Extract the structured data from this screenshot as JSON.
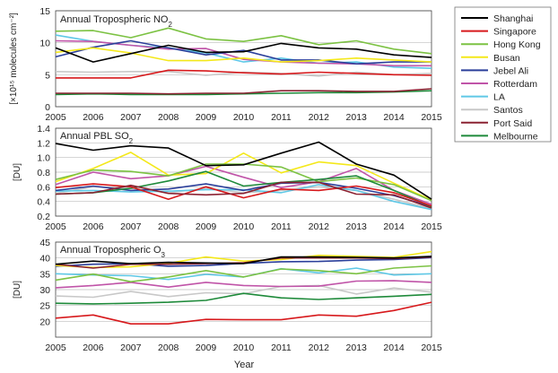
{
  "xlabel": "Year",
  "legend": [
    {
      "name": "Shanghai",
      "color": "#000000"
    },
    {
      "name": "Singapore",
      "color": "#d7191c"
    },
    {
      "name": "Hong Kong",
      "color": "#7cc243"
    },
    {
      "name": "Busan",
      "color": "#f4e81a"
    },
    {
      "name": "Jebel Ali",
      "color": "#2b3f9a"
    },
    {
      "name": "Rotterdam",
      "color": "#c054a8"
    },
    {
      "name": "LA",
      "color": "#5fc8e6"
    },
    {
      "name": "Santos",
      "color": "#c8c8c8"
    },
    {
      "name": "Port Said",
      "color": "#8b2232"
    },
    {
      "name": "Melbourne",
      "color": "#1e8a3a"
    }
  ],
  "chart_data": [
    {
      "type": "line",
      "title": "Annual Tropospheric NO",
      "title_sub": "2",
      "ylabel": "[×10¹⁵ molecules cm⁻²]",
      "xlabel": "Year",
      "x": [
        2005,
        2006,
        2007,
        2008,
        2009,
        2010,
        2011,
        2012,
        2013,
        2014,
        2015
      ],
      "ylim": [
        0,
        15
      ],
      "yticks": [
        0,
        5,
        10,
        15
      ],
      "xtick_labels": [
        "2005",
        "2006",
        "2007",
        "2008",
        "2009",
        "2010",
        "2011",
        "2012",
        "2013",
        "2014",
        "2015"
      ],
      "series": [
        {
          "name": "Shanghai",
          "values": [
            9.2,
            7.0,
            8.3,
            9.6,
            8.5,
            8.6,
            9.9,
            9.2,
            9.0,
            8.1,
            7.7
          ]
        },
        {
          "name": "Singapore",
          "values": [
            4.5,
            4.5,
            4.5,
            5.7,
            5.6,
            5.3,
            5.1,
            5.4,
            5.2,
            5.0,
            4.9
          ]
        },
        {
          "name": "Hong Kong",
          "values": [
            11.8,
            11.9,
            10.8,
            12.3,
            10.6,
            10.2,
            11.1,
            9.7,
            10.3,
            9.0,
            8.3
          ]
        },
        {
          "name": "Busan",
          "values": [
            8.5,
            9.2,
            8.4,
            7.2,
            7.2,
            7.6,
            7.0,
            7.2,
            7.6,
            7.3,
            7.0
          ]
        },
        {
          "name": "Jebel Ali",
          "values": [
            7.8,
            9.3,
            10.3,
            9.2,
            8.1,
            8.8,
            7.3,
            7.3,
            6.7,
            7.0,
            7.0
          ]
        },
        {
          "name": "Rotterdam",
          "values": [
            10.3,
            10.2,
            9.6,
            9.0,
            9.1,
            7.4,
            7.0,
            6.8,
            6.7,
            6.4,
            6.4
          ]
        },
        {
          "name": "LA",
          "values": [
            11.2,
            10.2,
            9.6,
            9.2,
            8.4,
            7.0,
            7.6,
            6.8,
            7.0,
            6.2,
            6.0
          ]
        },
        {
          "name": "Santos",
          "values": [
            5.5,
            5.4,
            5.5,
            5.5,
            4.9,
            5.4,
            5.2,
            4.8,
            5.4,
            5.0,
            5.2
          ]
        },
        {
          "name": "Port Said",
          "values": [
            2.1,
            2.1,
            2.1,
            2.0,
            2.1,
            2.1,
            2.5,
            2.5,
            2.4,
            2.4,
            2.8
          ]
        },
        {
          "name": "Melbourne",
          "values": [
            1.9,
            2.0,
            1.9,
            1.9,
            1.9,
            2.0,
            2.1,
            2.2,
            2.2,
            2.3,
            2.5
          ]
        }
      ]
    },
    {
      "type": "line",
      "title": "Annual PBL SO",
      "title_sub": "2",
      "ylabel": "[DU]",
      "xlabel": "Year",
      "x": [
        2005,
        2006,
        2007,
        2008,
        2009,
        2010,
        2011,
        2012,
        2013,
        2014,
        2015
      ],
      "ylim": [
        0.2,
        1.4
      ],
      "yticks": [
        0.2,
        0.4,
        0.6,
        0.8,
        1.0,
        1.2,
        1.4
      ],
      "xtick_labels": [
        "2005",
        "2006",
        "2007",
        "2008",
        "2009",
        "2010",
        "2011",
        "2012",
        "2013",
        "2014",
        "2015"
      ],
      "series": [
        {
          "name": "Shanghai",
          "values": [
            1.19,
            1.1,
            1.16,
            1.13,
            0.89,
            0.9,
            1.06,
            1.21,
            0.91,
            0.76,
            0.43
          ]
        },
        {
          "name": "Singapore",
          "values": [
            0.59,
            0.64,
            0.6,
            0.43,
            0.6,
            0.45,
            0.57,
            0.55,
            0.61,
            0.52,
            0.34
          ]
        },
        {
          "name": "Hong Kong",
          "values": [
            0.7,
            0.83,
            0.81,
            0.75,
            0.91,
            0.91,
            0.87,
            0.67,
            0.72,
            0.63,
            0.41
          ]
        },
        {
          "name": "Busan",
          "values": [
            0.67,
            0.85,
            1.07,
            0.76,
            0.78,
            1.06,
            0.79,
            0.94,
            0.89,
            0.65,
            0.42
          ]
        },
        {
          "name": "Jebel Ali",
          "values": [
            0.55,
            0.61,
            0.55,
            0.57,
            0.64,
            0.55,
            0.65,
            0.66,
            0.58,
            0.48,
            0.33
          ]
        },
        {
          "name": "Rotterdam",
          "values": [
            0.63,
            0.8,
            0.71,
            0.75,
            0.88,
            0.73,
            0.59,
            0.67,
            0.85,
            0.55,
            0.36
          ]
        },
        {
          "name": "LA",
          "values": [
            0.54,
            0.55,
            0.53,
            0.54,
            0.56,
            0.56,
            0.52,
            0.63,
            0.55,
            0.4,
            0.29
          ]
        },
        {
          "name": "Santos",
          "values": [
            0.51,
            0.6,
            0.58,
            0.52,
            0.58,
            0.52,
            0.55,
            0.6,
            0.55,
            0.43,
            0.3
          ]
        },
        {
          "name": "Port Said",
          "values": [
            0.5,
            0.52,
            0.62,
            0.51,
            0.49,
            0.51,
            0.66,
            0.66,
            0.5,
            0.49,
            0.31
          ]
        },
        {
          "name": "Melbourne",
          "values": [
            0.5,
            0.52,
            0.58,
            0.68,
            0.81,
            0.61,
            0.66,
            0.7,
            0.75,
            0.55,
            0.33
          ]
        }
      ]
    },
    {
      "type": "line",
      "title": "Annual Tropospheric O",
      "title_sub": "3",
      "ylabel": "[DU]",
      "xlabel": "Year",
      "x": [
        2005,
        2006,
        2007,
        2008,
        2009,
        2010,
        2011,
        2012,
        2013,
        2014,
        2015
      ],
      "ylim": [
        15,
        45
      ],
      "yticks": [
        20,
        25,
        30,
        35,
        40,
        45
      ],
      "xtick_labels": [
        "2005",
        "2006",
        "2007",
        "2008",
        "2009",
        "2010",
        "2011",
        "2012",
        "2013",
        "2014",
        "2015"
      ],
      "series": [
        {
          "name": "Shanghai",
          "values": [
            38.0,
            39.0,
            38.2,
            38.6,
            38.4,
            38.2,
            40.3,
            40.3,
            40.2,
            40.0,
            40.5
          ]
        },
        {
          "name": "Singapore",
          "values": [
            21.0,
            22.0,
            19.2,
            19.2,
            20.6,
            20.5,
            20.5,
            22.0,
            21.6,
            23.4,
            26.0
          ]
        },
        {
          "name": "Hong Kong",
          "values": [
            33.0,
            34.9,
            32.5,
            34.0,
            36.0,
            34.0,
            36.5,
            36.0,
            35.0,
            36.8,
            37.5
          ]
        },
        {
          "name": "Busan",
          "values": [
            37.6,
            37.0,
            37.2,
            38.3,
            40.3,
            39.0,
            39.5,
            40.8,
            40.5,
            40.2,
            42.0
          ]
        },
        {
          "name": "Jebel Ali",
          "values": [
            37.4,
            38.0,
            38.2,
            37.4,
            37.6,
            38.3,
            38.8,
            38.9,
            39.3,
            39.5,
            40.1
          ]
        },
        {
          "name": "Rotterdam",
          "values": [
            30.6,
            31.3,
            32.3,
            30.8,
            32.3,
            31.3,
            31.0,
            31.1,
            32.7,
            32.8,
            32.3
          ]
        },
        {
          "name": "LA",
          "values": [
            35.0,
            34.6,
            34.4,
            33.2,
            34.8,
            34.0,
            36.6,
            35.3,
            36.8,
            34.6,
            35.0
          ]
        },
        {
          "name": "Santos",
          "values": [
            28.0,
            27.6,
            29.4,
            27.8,
            29.0,
            28.7,
            31.0,
            31.3,
            28.6,
            30.5,
            29.2
          ]
        },
        {
          "name": "Port Said",
          "values": [
            38.0,
            36.8,
            38.0,
            38.0,
            38.2,
            38.5,
            40.0,
            40.0,
            40.0,
            39.8,
            40.3
          ]
        },
        {
          "name": "Melbourne",
          "values": [
            25.7,
            25.5,
            25.7,
            26.0,
            26.6,
            28.8,
            27.4,
            26.9,
            27.4,
            27.9,
            28.5
          ]
        }
      ]
    }
  ]
}
